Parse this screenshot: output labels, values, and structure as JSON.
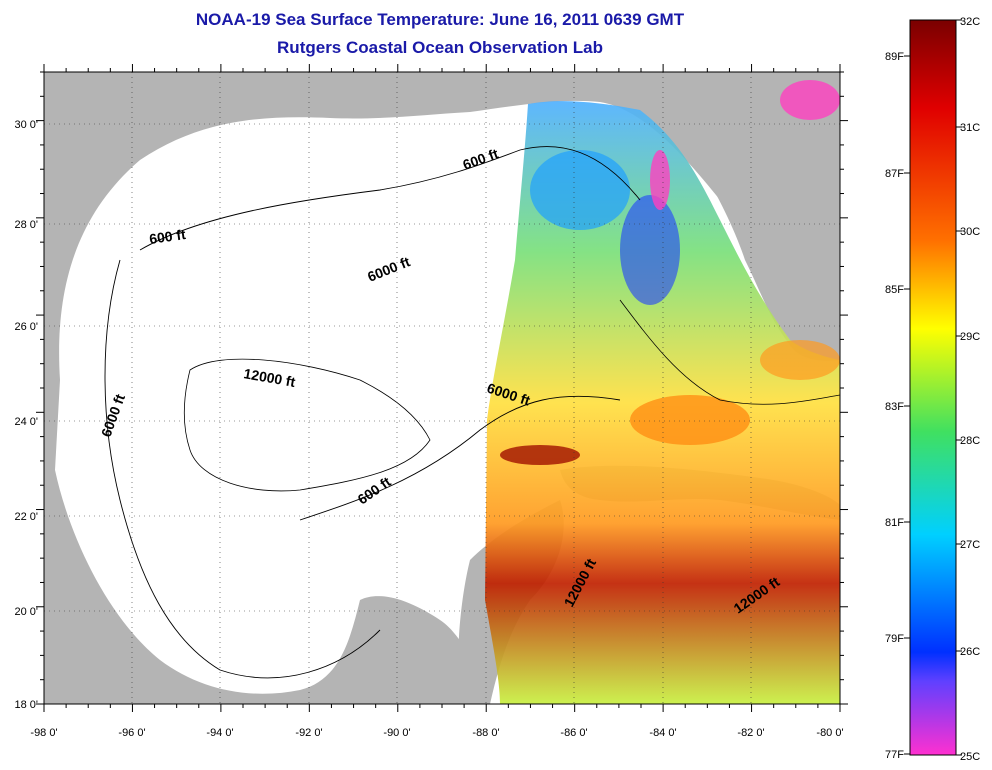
{
  "title": "NOAA-19 Sea Surface Temperature:  June 16, 2011 0639 GMT",
  "subtitle": "Rutgers Coastal Ocean Observation Lab",
  "map": {
    "lon_range": [
      -98,
      -80
    ],
    "lat_range": [
      18,
      31
    ],
    "lon_ticks": [
      "-98 0'",
      "-96 0'",
      "-94 0'",
      "-92 0'",
      "-90 0'",
      "-88 0'",
      "-86 0'",
      "-84 0'",
      "-82 0'",
      "-80 0'"
    ],
    "lat_ticks": [
      "18 0'",
      "20 0'",
      "22 0'",
      "24 0'",
      "26 0'",
      "28 0'",
      "30 0'"
    ],
    "land_color": "#b4b4b4",
    "no_data_color": "#ffffff",
    "grid": "dotted",
    "contour_labels": [
      "600 ft",
      "600 ft",
      "6000 ft",
      "6000 ft",
      "12000 ft",
      "6000 ft",
      "600 ft",
      "12000 ft",
      "12000 ft"
    ]
  },
  "colorbar": {
    "celsius_labels": [
      "32C",
      "31C",
      "30C",
      "29C",
      "28C",
      "27C",
      "26C",
      "25C"
    ],
    "fahrenheit_labels": [
      "89F",
      "87F",
      "85F",
      "83F",
      "81F",
      "79F",
      "77F"
    ],
    "colors": [
      "#7a0000",
      "#e00000",
      "#ff6a00",
      "#ffff00",
      "#00e0a0",
      "#00c0ff",
      "#0000ff",
      "#ff33cc"
    ]
  }
}
